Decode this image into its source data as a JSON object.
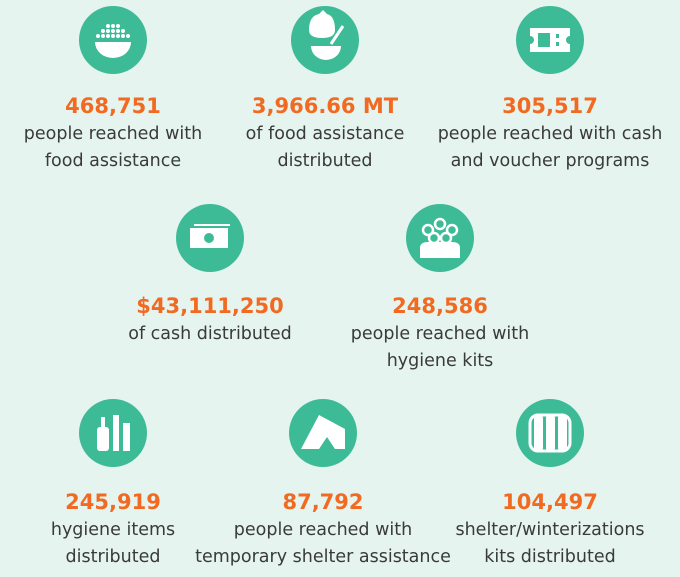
{
  "items": [
    {
      "value": "468,751",
      "label": [
        "people reached with",
        "food assistance"
      ]
    },
    {
      "value": "3,966.66  MT",
      "label": [
        "of food assistance",
        "distributed"
      ]
    },
    {
      "value": "305,517",
      "label": [
        "people reached with cash",
        "and voucher programs"
      ]
    },
    {
      "value": "$43,111,250",
      "label": [
        "of cash distributed"
      ]
    },
    {
      "value": "248,586",
      "label": [
        "people reached with",
        "hygiene kits"
      ]
    },
    {
      "value": "245,919",
      "label": [
        "hygiene items",
        "distributed"
      ]
    },
    {
      "value": "87,792",
      "label": [
        "people reached with",
        "temporary shelter assistance"
      ]
    },
    {
      "value": "104,497",
      "label": [
        "shelter/winterizations",
        "kits distributed"
      ]
    }
  ]
}
